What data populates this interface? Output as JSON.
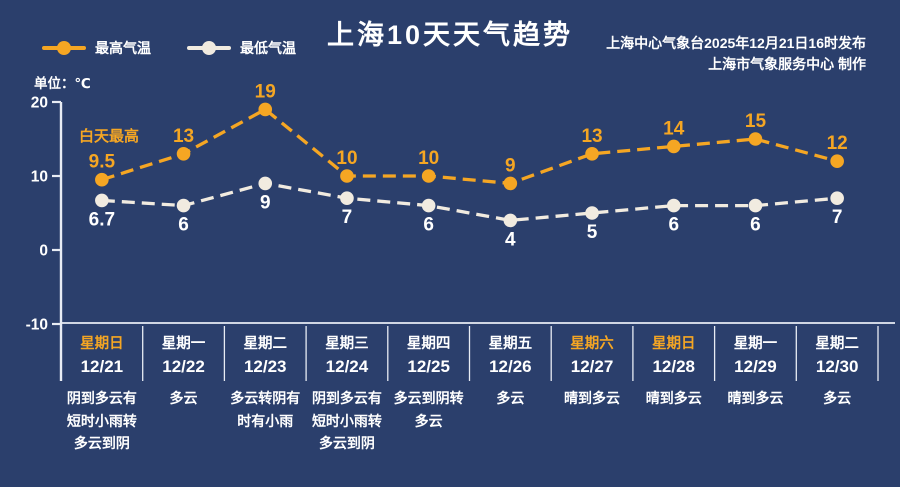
{
  "title": "上海10天天气趋势",
  "source_line1": "上海中心气象台2025年12月21日16时发布",
  "source_line2": "上海市气象服务中心 制作",
  "unit_label": "单位：℃",
  "annotation": "白天最高",
  "legend": [
    {
      "label": "最高气温",
      "color": "#F5A623"
    },
    {
      "label": "最低气温",
      "color": "#F1EBE0"
    }
  ],
  "colors": {
    "background": "#2B3F6C",
    "accent_orange": "#F5A623",
    "cream": "#F1EBE0",
    "axis": "#E8ECF4",
    "text": "#FFFFFF"
  },
  "chart_data": {
    "type": "line",
    "categories": [
      {
        "day": "星期日",
        "date": "12/21",
        "weather": "阴到多云有短时小雨转多云到阴",
        "weekend": true
      },
      {
        "day": "星期一",
        "date": "12/22",
        "weather": "多云",
        "weekend": false
      },
      {
        "day": "星期二",
        "date": "12/23",
        "weather": "多云转阴有时有小雨",
        "weekend": false
      },
      {
        "day": "星期三",
        "date": "12/24",
        "weather": "阴到多云有短时小雨转多云到阴",
        "weekend": false
      },
      {
        "day": "星期四",
        "date": "12/25",
        "weather": "多云到阴转多云",
        "weekend": false
      },
      {
        "day": "星期五",
        "date": "12/26",
        "weather": "多云",
        "weekend": false
      },
      {
        "day": "星期六",
        "date": "12/27",
        "weather": "晴到多云",
        "weekend": true
      },
      {
        "day": "星期日",
        "date": "12/28",
        "weather": "晴到多云",
        "weekend": true
      },
      {
        "day": "星期一",
        "date": "12/29",
        "weather": "晴到多云",
        "weekend": false
      },
      {
        "day": "星期二",
        "date": "12/30",
        "weather": "多云",
        "weekend": false
      }
    ],
    "series": [
      {
        "name": "最高气温",
        "color": "#F5A623",
        "label_color": "#F5A623",
        "values": [
          9.5,
          13,
          19,
          10,
          10,
          9,
          13,
          14,
          15,
          12
        ]
      },
      {
        "name": "最低气温",
        "color": "#F1EBE0",
        "label_color": "#FFFFFF",
        "values": [
          6.7,
          6,
          9,
          7,
          6,
          4,
          5,
          6,
          6,
          7
        ]
      }
    ],
    "yticks": [
      20,
      10,
      0,
      -10
    ],
    "ylim": [
      -10,
      20
    ],
    "grid": false,
    "legend_position": "top-left"
  }
}
